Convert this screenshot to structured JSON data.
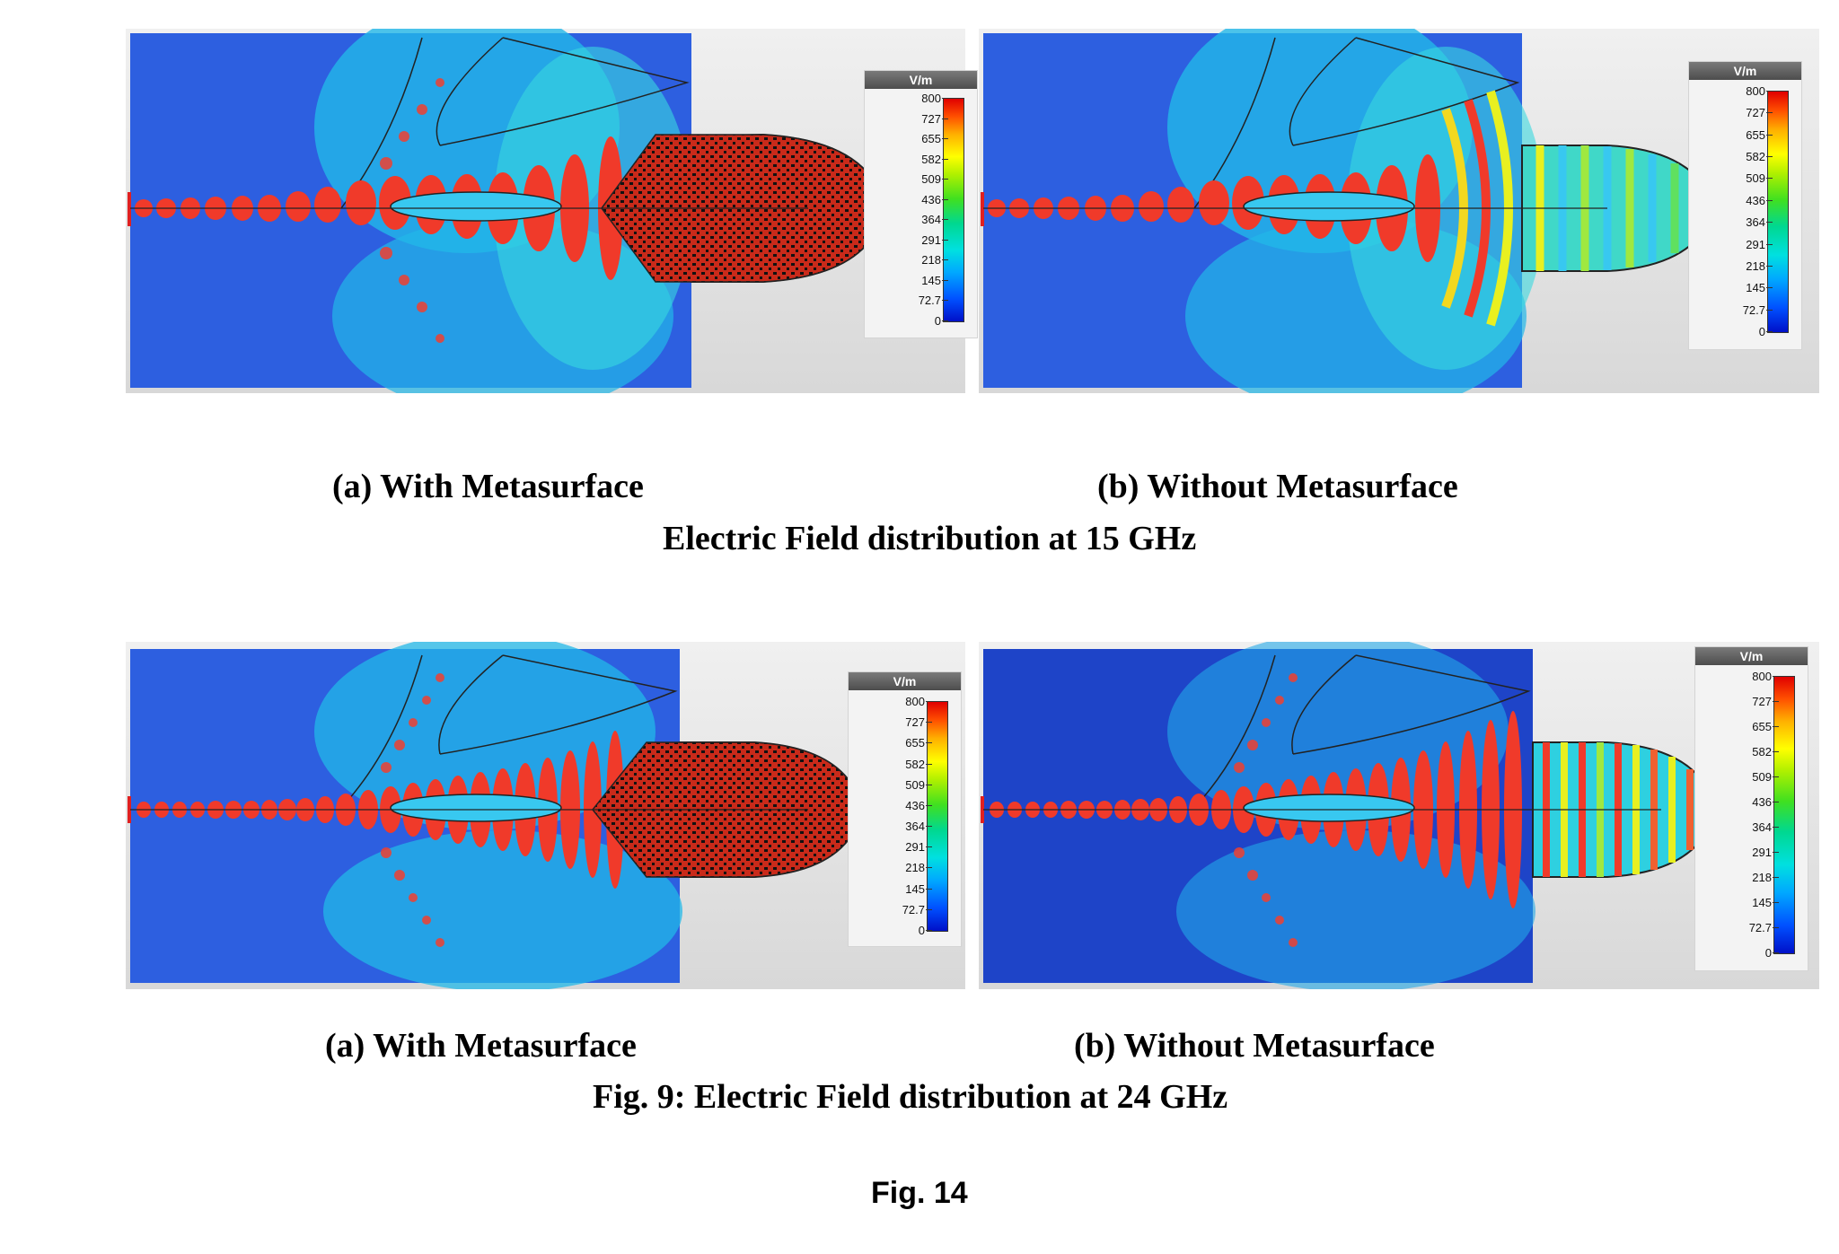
{
  "rows": [
    {
      "panels": [
        {
          "id": "a",
          "metasurface": true
        },
        {
          "id": "b",
          "metasurface": false
        }
      ],
      "captions": {
        "left": "(a)  With Metasurface",
        "right": "(b) Without Metasurface",
        "title": "Electric Field distribution at 15 GHz"
      }
    },
    {
      "panels": [
        {
          "id": "a",
          "metasurface": true
        },
        {
          "id": "b",
          "metasurface": false
        }
      ],
      "captions": {
        "left": "(a)  With Metasurface",
        "right": "(b) Without Metasurface",
        "title": "Fig. 9: Electric Field distribution at 24 GHz"
      }
    }
  ],
  "legend": {
    "unit": "V/m",
    "ticks": [
      "800",
      "727",
      "655",
      "582",
      "509",
      "436",
      "364",
      "291",
      "218",
      "145",
      "72.7",
      "0"
    ]
  },
  "colors": {
    "background_field": "#2a5ce6",
    "field_peak": "#f03a2a",
    "field_mid": "#2ee8e0",
    "field_yellow": "#e8f020"
  },
  "figure_label": "Fig. 14"
}
